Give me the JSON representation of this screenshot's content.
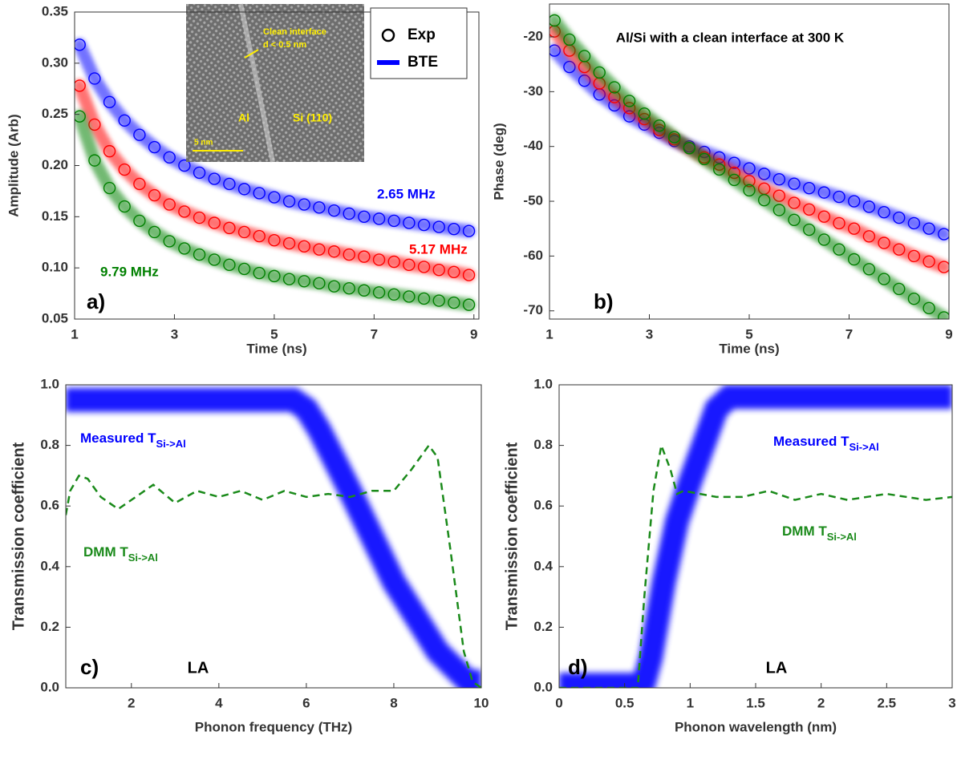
{
  "chart_data": [
    {
      "type": "scatter",
      "panel": "a)",
      "xlabel": "Time (ns)",
      "ylabel": "Amplitude (Arb)",
      "xlim": [
        1,
        9.1
      ],
      "xticks": [
        1,
        3,
        5,
        7,
        9
      ],
      "ylim": [
        0.05,
        0.35
      ],
      "yticks": [
        0.05,
        {
          "value": 0.1,
          "label": "0.10"
        },
        0.15,
        {
          "value": 0.2,
          "label": "0.20"
        },
        0.25,
        {
          "value": 0.3,
          "label": "0.30"
        },
        0.35
      ],
      "legend": [
        "Exp",
        "BTE"
      ],
      "inset": {
        "labels": [
          "Clean interface",
          "d < 0.5 nm",
          "Al",
          "Si (110)",
          "5 nm"
        ]
      },
      "x": [
        1.1,
        1.4,
        1.7,
        2.0,
        2.3,
        2.6,
        2.9,
        3.2,
        3.5,
        3.8,
        4.1,
        4.4,
        4.7,
        5.0,
        5.3,
        5.6,
        5.9,
        6.2,
        6.5,
        6.8,
        7.1,
        7.4,
        7.7,
        8.0,
        8.3,
        8.6,
        8.9
      ],
      "series": [
        {
          "name": "2.65 MHz",
          "color": "#0000ff",
          "values": [
            0.318,
            0.285,
            0.262,
            0.244,
            0.23,
            0.218,
            0.208,
            0.2,
            0.193,
            0.187,
            0.182,
            0.177,
            0.173,
            0.169,
            0.165,
            0.162,
            0.159,
            0.156,
            0.153,
            0.15,
            0.148,
            0.146,
            0.144,
            0.142,
            0.14,
            0.138,
            0.136
          ]
        },
        {
          "name": "5.17 MHz",
          "color": "#ff0000",
          "values": [
            0.278,
            0.24,
            0.214,
            0.196,
            0.182,
            0.171,
            0.162,
            0.155,
            0.149,
            0.144,
            0.139,
            0.135,
            0.131,
            0.127,
            0.124,
            0.121,
            0.118,
            0.116,
            0.113,
            0.111,
            0.108,
            0.106,
            0.103,
            0.101,
            0.098,
            0.096,
            0.093
          ]
        },
        {
          "name": "9.79 MHz",
          "color": "#008000",
          "values": [
            0.248,
            0.205,
            0.178,
            0.16,
            0.146,
            0.135,
            0.126,
            0.119,
            0.113,
            0.108,
            0.103,
            0.099,
            0.095,
            0.092,
            0.089,
            0.087,
            0.085,
            0.082,
            0.08,
            0.078,
            0.076,
            0.074,
            0.072,
            0.07,
            0.068,
            0.066,
            0.064
          ]
        }
      ]
    },
    {
      "type": "scatter",
      "panel": "b)",
      "title": "Al/Si with a clean interface at 300 K",
      "xlabel": "Time (ns)",
      "ylabel": "Phase (deg)",
      "xlim": [
        1,
        9
      ],
      "xticks": [
        1,
        3,
        5,
        7,
        9
      ],
      "ylim": [
        -71.5,
        -14
      ],
      "yticks": [
        -70,
        -60,
        -50,
        -40,
        -30,
        -20
      ],
      "x": [
        1.1,
        1.4,
        1.7,
        2.0,
        2.3,
        2.6,
        2.9,
        3.2,
        3.5,
        3.8,
        4.1,
        4.4,
        4.7,
        5.0,
        5.3,
        5.6,
        5.9,
        6.2,
        6.5,
        6.8,
        7.1,
        7.4,
        7.7,
        8.0,
        8.3,
        8.6,
        8.9
      ],
      "series": [
        {
          "color": "#0000ff",
          "values": [
            -22.5,
            -25.5,
            -28,
            -30.5,
            -32.5,
            -34.5,
            -36,
            -37.5,
            -39,
            -40,
            -41,
            -42,
            -43,
            -44,
            -45,
            -46,
            -46.8,
            -47.6,
            -48.4,
            -49.2,
            -50,
            -51,
            -52,
            -53,
            -54,
            -55,
            -56
          ]
        },
        {
          "color": "#ff0000",
          "values": [
            -19,
            -22.5,
            -25.5,
            -28.5,
            -31,
            -33,
            -35,
            -37,
            -38.7,
            -40.3,
            -42,
            -43.3,
            -44.8,
            -46.3,
            -47.7,
            -49,
            -50.3,
            -51.5,
            -52.8,
            -54,
            -55,
            -56.4,
            -57.6,
            -58.8,
            -60,
            -61,
            -62
          ]
        },
        {
          "color": "#008000",
          "values": [
            -17,
            -20.5,
            -23.5,
            -26.5,
            -29.2,
            -31.7,
            -34,
            -36.2,
            -38.3,
            -40.3,
            -42.3,
            -44.2,
            -46.1,
            -48,
            -49.8,
            -51.6,
            -53.4,
            -55.2,
            -57,
            -58.8,
            -60.6,
            -62.4,
            -64.2,
            -66,
            -67.8,
            -69.5,
            -71.2
          ]
        }
      ]
    },
    {
      "type": "line",
      "panel": "c)",
      "annotation": "LA",
      "xlabel": "Phonon frequency (THz)",
      "ylabel": "Transmission coefficient",
      "xlim": [
        0.5,
        10
      ],
      "xticks": [
        2,
        4,
        6,
        8,
        10
      ],
      "ylim": [
        0,
        1
      ],
      "yticks": [
        {
          "value": 0,
          "label": "0.0"
        },
        0.2,
        0.4,
        0.6,
        0.8,
        {
          "value": 1,
          "label": "1.0"
        }
      ],
      "series": [
        {
          "name": "Measured T",
          "name_sub": "Si->Al",
          "color": "#0000ff",
          "style": "band",
          "x": [
            0.5,
            5.7,
            6.0,
            6.3,
            7.0,
            8.0,
            9.0,
            9.7,
            10
          ],
          "values": [
            0.95,
            0.95,
            0.92,
            0.85,
            0.65,
            0.35,
            0.12,
            0.02,
            0.02
          ]
        },
        {
          "name": "DMM T",
          "name_sub": "Si->Al",
          "color": "#1a8a1a",
          "style": "dashed",
          "x": [
            0.5,
            0.6,
            0.8,
            1.0,
            1.3,
            1.7,
            2.2,
            2.5,
            3.0,
            3.5,
            4.0,
            4.5,
            5.0,
            5.5,
            6.0,
            6.5,
            7.0,
            7.5,
            8.0,
            8.4,
            8.8,
            9.0,
            9.3,
            9.6,
            9.8,
            10
          ],
          "values": [
            0.57,
            0.65,
            0.7,
            0.69,
            0.63,
            0.59,
            0.64,
            0.67,
            0.61,
            0.65,
            0.63,
            0.65,
            0.62,
            0.65,
            0.63,
            0.64,
            0.63,
            0.65,
            0.65,
            0.72,
            0.8,
            0.76,
            0.45,
            0.12,
            0.02,
            0.0
          ]
        }
      ]
    },
    {
      "type": "line",
      "panel": "d)",
      "annotation": "LA",
      "xlabel": "Phonon wavelength (nm)",
      "ylabel": "Transmission coefficient",
      "xlim": [
        0,
        3
      ],
      "xticks": [
        0,
        0.5,
        1,
        1.5,
        2,
        2.5,
        3
      ],
      "ylim": [
        0,
        1
      ],
      "yticks": [
        {
          "value": 0,
          "label": "0.0"
        },
        0.2,
        0.4,
        0.6,
        0.8,
        {
          "value": 1,
          "label": "1.0"
        }
      ],
      "series": [
        {
          "name": "Measured T",
          "name_sub": "Si->Al",
          "color": "#0000ff",
          "style": "band",
          "x": [
            0,
            0.6,
            0.65,
            0.7,
            0.8,
            0.9,
            1.0,
            1.1,
            1.2,
            1.3,
            3
          ],
          "values": [
            0.01,
            0.01,
            0.02,
            0.1,
            0.35,
            0.55,
            0.68,
            0.8,
            0.92,
            0.96,
            0.96
          ]
        },
        {
          "name": "DMM T",
          "name_sub": "Si->Al",
          "color": "#1a8a1a",
          "style": "dashed",
          "x": [
            0,
            0.6,
            0.65,
            0.72,
            0.78,
            0.85,
            0.9,
            0.95,
            1.2,
            1.4,
            1.6,
            1.8,
            2.0,
            2.2,
            2.5,
            2.8,
            3
          ],
          "values": [
            0,
            0,
            0.3,
            0.65,
            0.8,
            0.72,
            0.64,
            0.65,
            0.63,
            0.63,
            0.65,
            0.62,
            0.64,
            0.62,
            0.64,
            0.62,
            0.63
          ]
        }
      ]
    }
  ]
}
